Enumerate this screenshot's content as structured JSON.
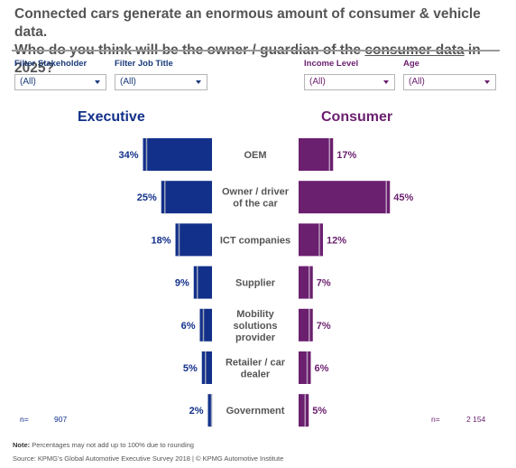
{
  "title": {
    "line1": "Connected cars generate an enormous amount of consumer & vehicle data.",
    "line2_prefix": "Who do you think will be the owner / guardian of the ",
    "line2_underlined": "consumer data",
    "line2_suffix": " in 2025?"
  },
  "filters": [
    {
      "label": "Filter Stakeholder",
      "value": "(All)"
    },
    {
      "label": "Filter Job Title",
      "value": "(All)"
    },
    {
      "label": "Income Level",
      "value": "(All)"
    },
    {
      "label": "Age",
      "value": "(All)"
    }
  ],
  "colors": {
    "executive": "#12308a",
    "consumer": "#6b1f6f"
  },
  "chart_data": {
    "type": "bar",
    "orientation": "horizontal-butterfly",
    "categories": [
      "OEM",
      "Owner / driver of the car",
      "ICT companies",
      "Supplier",
      "Mobility solutions provider",
      "Retailer / car dealer",
      "Government"
    ],
    "category_lines": [
      [
        "OEM"
      ],
      [
        "Owner / driver",
        "of the car"
      ],
      [
        "ICT companies"
      ],
      [
        "Supplier"
      ],
      [
        "Mobility",
        "solutions",
        "provider"
      ],
      [
        "Retailer / car",
        "dealer"
      ],
      [
        "Government"
      ]
    ],
    "series": [
      {
        "name": "Executive",
        "values": [
          34,
          25,
          18,
          9,
          6,
          5,
          2
        ],
        "labels": [
          "34%",
          "25%",
          "18%",
          "9%",
          "6%",
          "5%",
          "2%"
        ]
      },
      {
        "name": "Consumer",
        "values": [
          17,
          45,
          12,
          7,
          7,
          6,
          5
        ],
        "labels": [
          "17%",
          "45%",
          "12%",
          "7%",
          "7%",
          "6%",
          "5%"
        ]
      }
    ],
    "unit": "%"
  },
  "sample": {
    "executive_label": "n=",
    "executive_n": "907",
    "consumer_label": "n=",
    "consumer_n": "2 154"
  },
  "note": {
    "label": "Note:",
    "text": " Percentages may not add up to 100% due to rounding"
  },
  "source": "Source: KPMG's Global Automotive Executive Survey 2018 | © KPMG Automotive Institute"
}
